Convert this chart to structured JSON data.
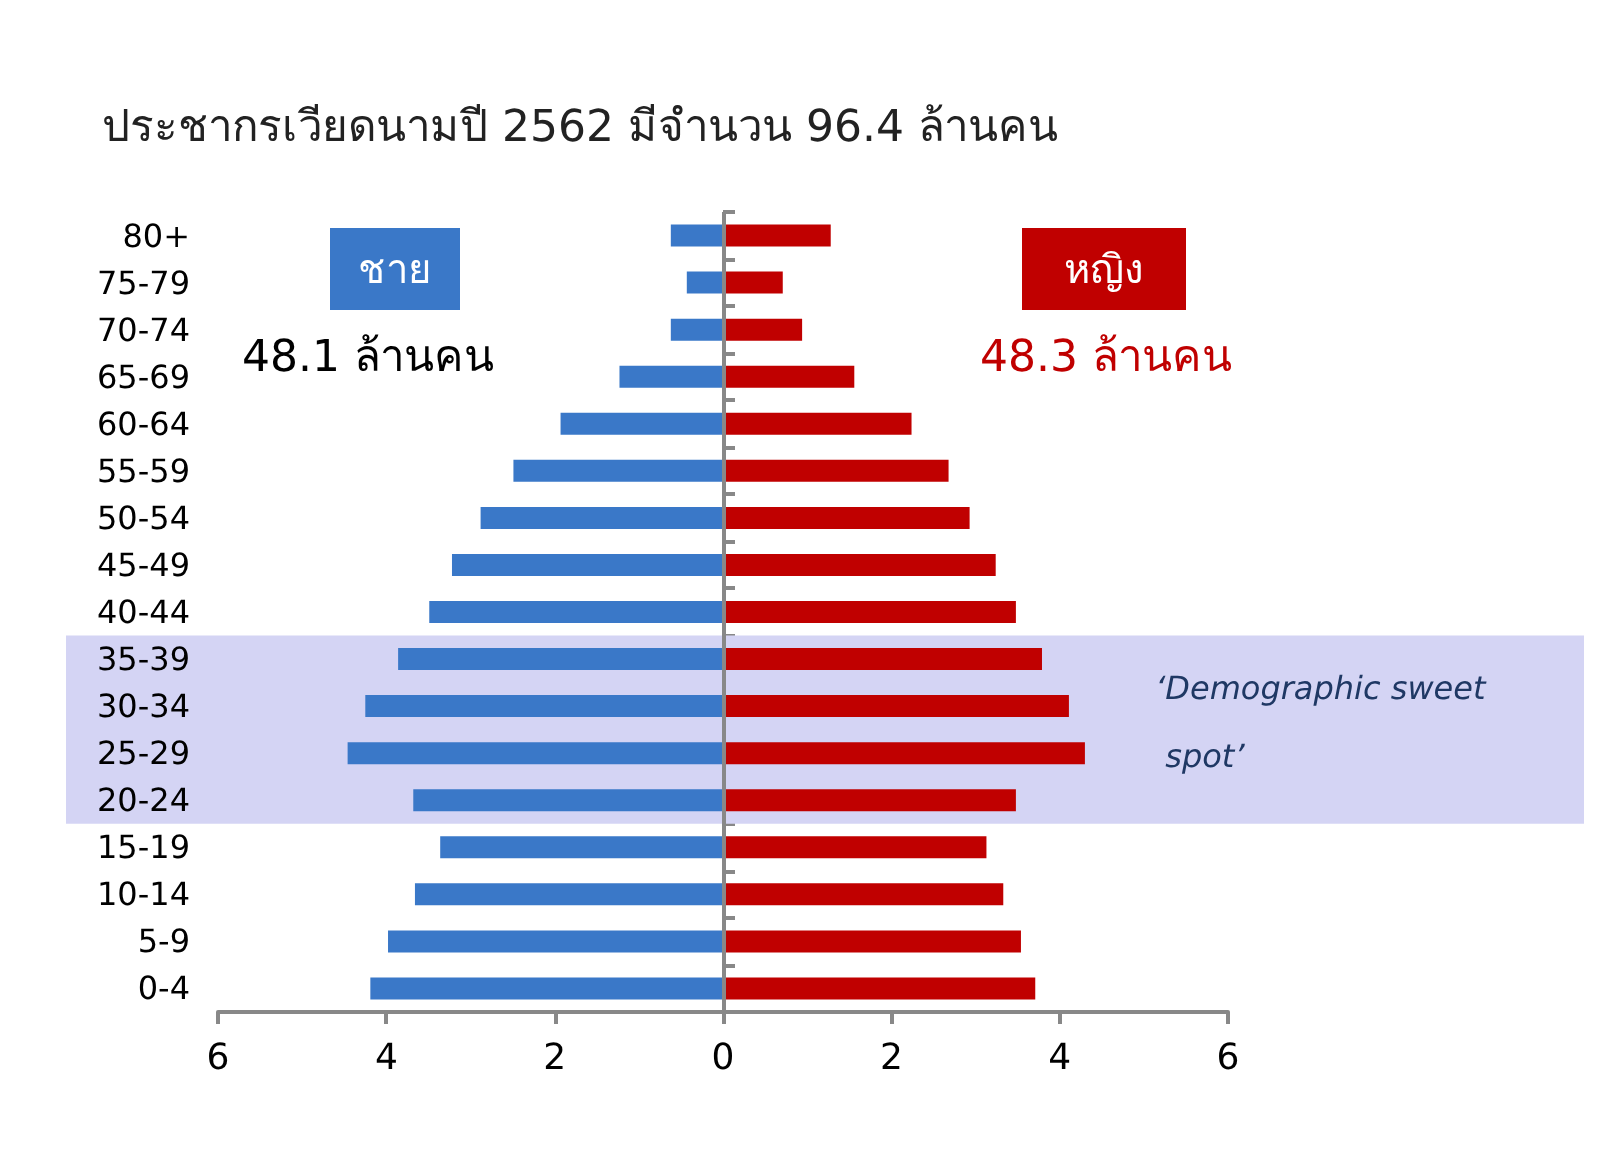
{
  "chart_data": {
    "type": "bar",
    "orientation": "horizontal",
    "title": "ประชากรเวียดนามปี 2562 มีจำนวน 96.4 ล้านคน",
    "categories": [
      "80+",
      "75-79",
      "70-74",
      "65-69",
      "60-64",
      "55-59",
      "50-54",
      "45-49",
      "40-44",
      "35-39",
      "30-34",
      "25-29",
      "20-24",
      "15-19",
      "10-14",
      "5-9",
      "0-4"
    ],
    "series": [
      {
        "name": "ชาย",
        "color": "#3a78c8",
        "values": [
          -0.62,
          -0.43,
          -0.62,
          -1.23,
          -1.93,
          -2.49,
          -2.88,
          -3.22,
          -3.49,
          -3.86,
          -4.25,
          -4.46,
          -3.68,
          -3.36,
          -3.66,
          -3.98,
          -4.19
        ]
      },
      {
        "name": "หญิง",
        "color": "#c00000",
        "values": [
          1.28,
          0.71,
          0.94,
          1.56,
          2.24,
          2.68,
          2.93,
          3.24,
          3.48,
          3.79,
          4.11,
          4.3,
          3.48,
          3.13,
          3.33,
          3.54,
          3.71
        ]
      }
    ],
    "xlim": [
      -6,
      6
    ],
    "xticks": [
      {
        "value": -6,
        "label": "6"
      },
      {
        "value": -4,
        "label": "4"
      },
      {
        "value": -2,
        "label": "2"
      },
      0,
      2,
      4,
      6
    ],
    "bands": [
      {
        "axis": "y",
        "from": "35-39",
        "to": "20-24",
        "label": "‘Demographic sweet spot’",
        "color": "#d4d4f4"
      }
    ],
    "annotations": [
      "48.1 ล้านคน",
      "48.3 ล้านคน"
    ],
    "ref_lines": [
      {
        "axis": "x",
        "value": 0,
        "color": "#888888"
      }
    ],
    "stacked": true,
    "grid": false,
    "legend": false
  }
}
